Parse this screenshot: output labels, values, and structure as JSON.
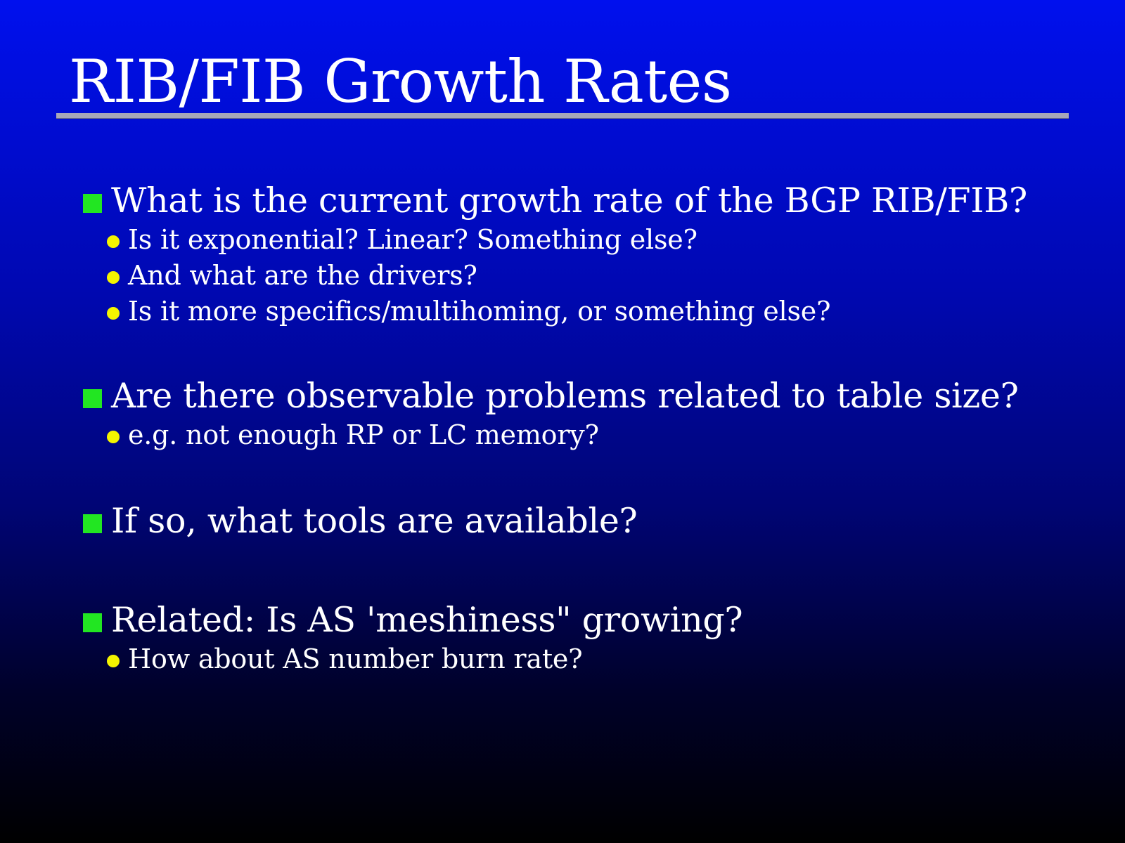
{
  "slide": {
    "title": "RIB/FIB Growth Rates",
    "bullets": [
      {
        "text": "What is the current growth rate of the BGP RIB/FIB?",
        "subs": [
          "Is it exponential? Linear? Something else?",
          "And what are the drivers?",
          "Is it more specifics/multihoming, or something else?"
        ]
      },
      {
        "text": "Are there observable problems related to table size?",
        "subs": [
          "e.g. not enough RP or LC memory?"
        ]
      },
      {
        "text": "If so, what tools are available?",
        "subs": []
      },
      {
        "text": "Related: Is AS 'meshiness\" growing?",
        "subs": [
          "How about AS number burn rate?"
        ]
      }
    ]
  },
  "colors": {
    "background_top": "#0010ee",
    "background_bottom": "#000000",
    "title_rule": "#a8a8b8",
    "primary_bullet": "#22e622",
    "secondary_bullet": "#f4f400",
    "text": "#ffffff"
  },
  "icons": {
    "primary_bullet": "green-square-bullet-icon",
    "secondary_bullet": "yellow-dot-bullet-icon"
  }
}
